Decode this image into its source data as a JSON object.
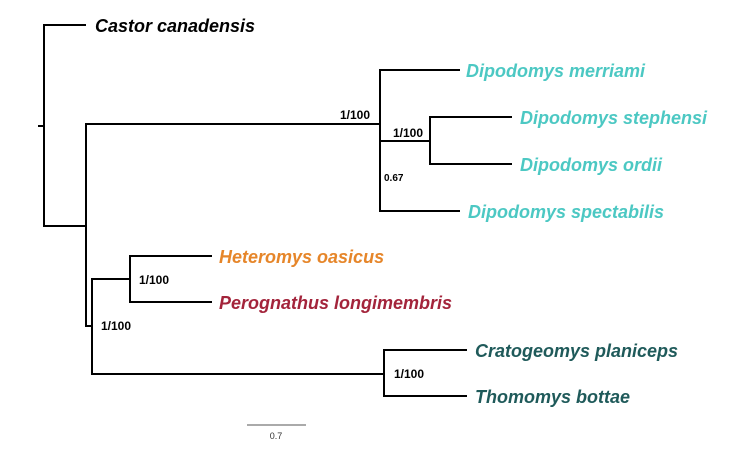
{
  "taxa": {
    "castor": {
      "label": "Castor canadensis",
      "color": "#000000"
    },
    "merriami": {
      "label": "Dipodomys merriami",
      "color": "#4cc8c3"
    },
    "stephensi": {
      "label": "Dipodomys stephensi",
      "color": "#4cc8c3"
    },
    "ordii": {
      "label": "Dipodomys ordii",
      "color": "#4cc8c3"
    },
    "spectabilis": {
      "label": "Dipodomys spectabilis",
      "color": "#4cc8c3"
    },
    "heteromys": {
      "label": "Heteromys oasicus",
      "color": "#e6862a"
    },
    "perognathus": {
      "label": "Perognathus longimembris",
      "color": "#a3243b"
    },
    "cratogeomys": {
      "label": "Cratogeomys planiceps",
      "color": "#1f5a5a"
    },
    "thomomys": {
      "label": "Thomomys bottae",
      "color": "#1f5a5a"
    }
  },
  "support": {
    "dipodomys": "1/100",
    "stephensi_ordii": "1/100",
    "ordii_spectabilis": "0.67",
    "heteromys_perognathus": "1/100",
    "heteromyidae_geomyidae": "1/100",
    "geomyidae": "1/100"
  },
  "scale": {
    "label": "0.7"
  }
}
